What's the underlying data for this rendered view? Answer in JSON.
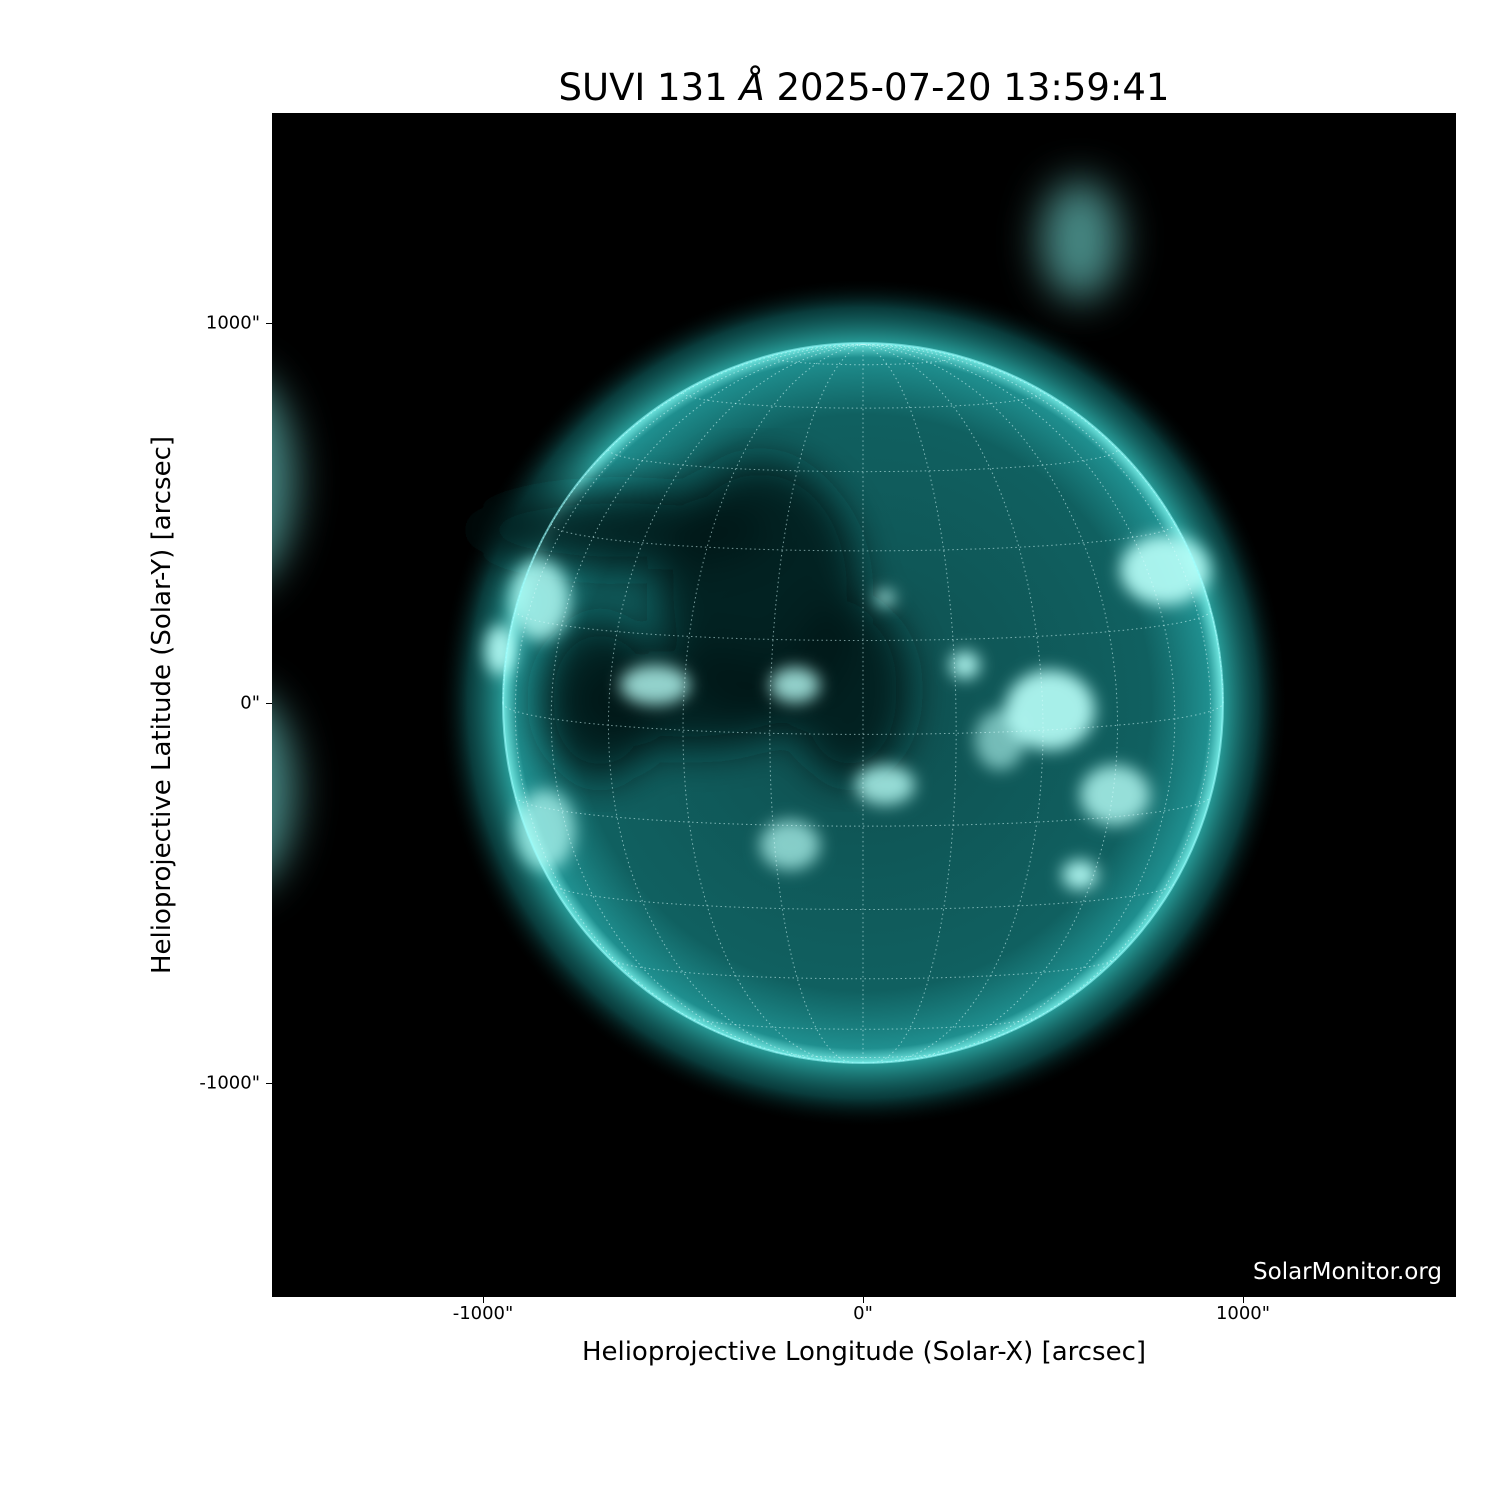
{
  "title": {
    "prefix": "SUVI 131 ",
    "unit": "Å",
    "suffix": " 2025-07-20 13:59:41"
  },
  "xaxis": {
    "label": "Helioprojective Longitude (Solar-X) [arcsec]",
    "ticks": [
      {
        "value": -1000,
        "label": "-1000\""
      },
      {
        "value": 0,
        "label": "0\""
      },
      {
        "value": 1000,
        "label": "1000\""
      }
    ],
    "range": [
      -1555,
      1560
    ]
  },
  "yaxis": {
    "label": "Helioprojective Latitude (Solar-Y) [arcsec]",
    "ticks": [
      {
        "value": 1000,
        "label": "1000\""
      },
      {
        "value": 0,
        "label": "0\""
      },
      {
        "value": -1000,
        "label": "-1000\""
      }
    ],
    "range": [
      -1560,
      1555
    ]
  },
  "watermark": "SolarMonitor.org",
  "colors": {
    "colormap_mid": "#1a9a9a",
    "colormap_bright": "#a8fff8",
    "background": "#000000"
  },
  "grid": {
    "spacing_deg": 15,
    "style": "dotted"
  }
}
